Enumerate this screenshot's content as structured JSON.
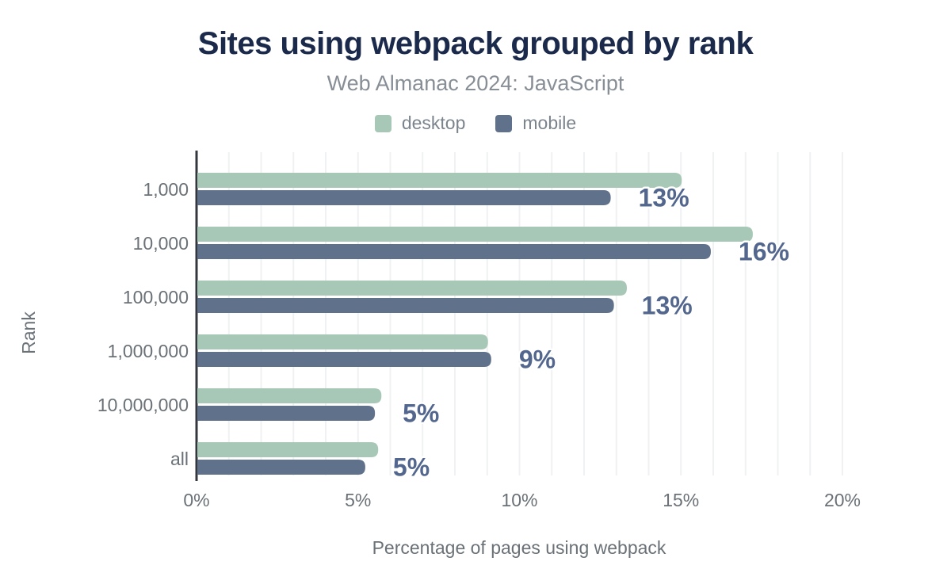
{
  "header": {
    "title": "Sites using webpack grouped by rank",
    "subtitle": "Web Almanac 2024: JavaScript"
  },
  "legend": [
    {
      "label": "desktop",
      "color": "#a7c8b6"
    },
    {
      "label": "mobile",
      "color": "#60718c"
    }
  ],
  "chart_data": {
    "type": "bar",
    "orientation": "horizontal",
    "title": "Sites using webpack grouped by rank",
    "subtitle": "Web Almanac 2024: JavaScript",
    "categories": [
      "1,000",
      "10,000",
      "100,000",
      "1,000,000",
      "10,000,000",
      "all"
    ],
    "series": [
      {
        "name": "desktop",
        "color": "#a7c8b6",
        "values": [
          15.0,
          17.2,
          13.3,
          9.0,
          5.7,
          5.6
        ]
      },
      {
        "name": "mobile",
        "color": "#60718c",
        "values": [
          12.8,
          15.9,
          12.9,
          9.1,
          5.5,
          5.2
        ]
      }
    ],
    "bar_labels": [
      "13%",
      "16%",
      "13%",
      "9%",
      "5%",
      "5%"
    ],
    "label_series": "mobile",
    "xlabel": "Percentage of pages using webpack",
    "ylabel": "Rank",
    "x_ticks": [
      "0%",
      "5%",
      "10%",
      "15%",
      "20%"
    ],
    "xlim": [
      0,
      20
    ],
    "grid": "vertical, every 1%",
    "legend_position": "top"
  },
  "colors": {
    "desktop_bar": "#a7c8b6",
    "mobile_bar": "#60718c",
    "title_text": "#1b2a4b",
    "subtitle_text": "#878e95",
    "legend_text": "#7b848d",
    "axis_text": "#6a7177",
    "data_label_text": "#53678e",
    "data_label_outline": "#ffffff",
    "gridline": "#f0f1f2",
    "axis_line": "#34383e",
    "background": "#ffffff"
  }
}
